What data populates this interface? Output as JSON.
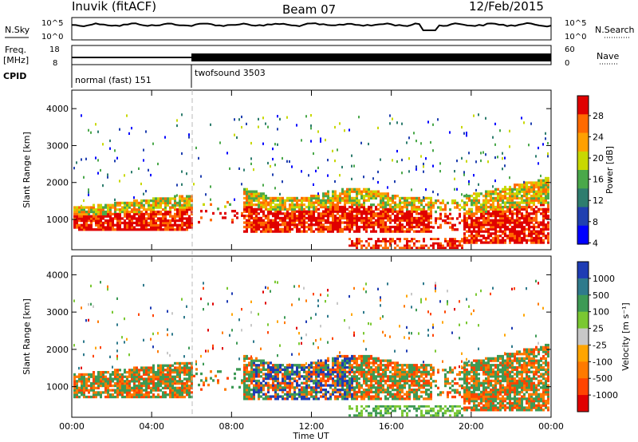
{
  "header": {
    "station": "Inuvik (fitACF)",
    "beam": "Beam 07",
    "date": "12/Feb/2015"
  },
  "strip_labels": {
    "nsky": "N.Sky",
    "freq_top": "Freq.",
    "freq_unit": "[MHz]",
    "cpid": "CPID",
    "nsearch": "N.Search",
    "nave": "Nave"
  },
  "strip_ticks": {
    "noise_left": [
      "10^5",
      "10^0"
    ],
    "noise_right": [
      "10^5",
      "10^0"
    ],
    "freq_left": [
      "18",
      "8"
    ],
    "nave_right": [
      "60",
      "0"
    ]
  },
  "cpid_modes": [
    {
      "label": "normal (fast) 151",
      "start_hour": 0,
      "end_hour": 6
    },
    {
      "label": "twofsound 3503",
      "start_hour": 6,
      "end_hour": 24
    }
  ],
  "chart_data": [
    {
      "type": "heatmap",
      "name": "power",
      "ylabel": "Slant Range [km]",
      "xlabel": "",
      "xlim": [
        0,
        24
      ],
      "ylim": [
        180,
        4500
      ],
      "yticks": [
        1000,
        2000,
        3000,
        4000
      ],
      "colorbar": {
        "label": "Power [dB]",
        "ticks": [
          "28",
          "24",
          "20",
          "16",
          "12",
          "8",
          "4"
        ],
        "colors": [
          "#e00000",
          "#ff6a00",
          "#ffa000",
          "#c8d800",
          "#4aa84a",
          "#2e7d6e",
          "#2040b0",
          "#0000ff"
        ]
      }
    },
    {
      "type": "heatmap",
      "name": "velocity",
      "ylabel": "Slant Range [km]",
      "xlabel": "Time UT",
      "xlim": [
        0,
        24
      ],
      "ylim": [
        180,
        4500
      ],
      "yticks": [
        1000,
        2000,
        3000,
        4000
      ],
      "xticks": [
        "00:00",
        "04:00",
        "08:00",
        "12:00",
        "16:00",
        "20:00",
        "00:00"
      ],
      "colorbar": {
        "label": "Velocity [m s⁻¹]",
        "ticks": [
          "1000",
          "500",
          "100",
          "25",
          "-25",
          "-100",
          "-500",
          "-1000"
        ],
        "colors": [
          "#1e3cb4",
          "#2f7a8c",
          "#3d9a55",
          "#7ac832",
          "#c8c8c8",
          "#ffa500",
          "#ff7a00",
          "#ff4400",
          "#e00000"
        ]
      }
    }
  ]
}
